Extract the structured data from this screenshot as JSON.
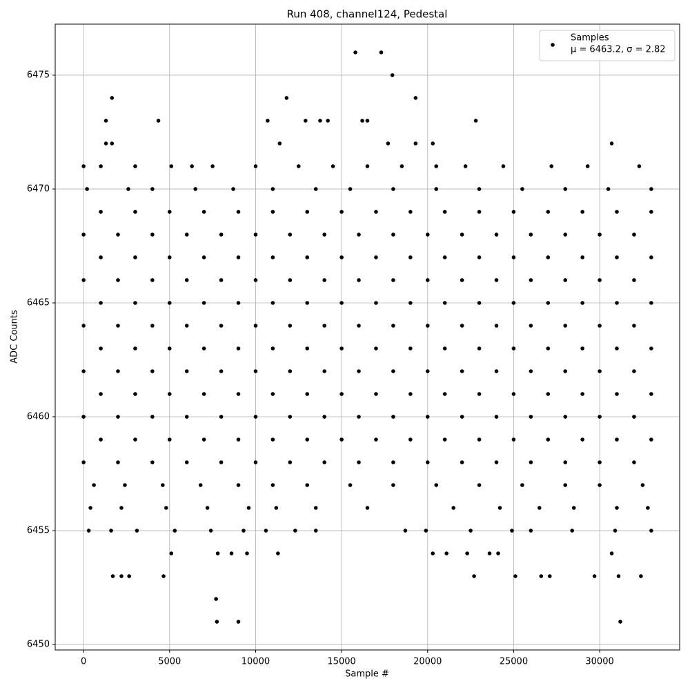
{
  "chart_data": {
    "type": "scatter",
    "title": "Run 408, channel124, Pedestal",
    "x_label": "Sample #",
    "y_label": "ADC Counts",
    "xlim": [
      -1650,
      34650
    ],
    "ylim": [
      6449.76,
      6477.24
    ],
    "xticks": [
      0,
      5000,
      10000,
      15000,
      20000,
      25000,
      30000
    ],
    "yticks": [
      6450,
      6455,
      6460,
      6465,
      6470,
      6475
    ],
    "grid": true,
    "legend_position": "upper right",
    "series": [
      {
        "name": "Samples",
        "label": "μ = 6463.2, σ = 2.82",
        "color": "#000000",
        "x": [
          0,
          2000,
          4000,
          6000,
          8000,
          10000,
          12000,
          14000,
          16000,
          18000,
          20000,
          22000,
          24000,
          26000,
          28000,
          30000,
          32000,
          1000,
          3000,
          5000,
          7000,
          9000,
          11000,
          13000,
          15000,
          17000,
          19000,
          21000,
          23000,
          25000,
          27000,
          29000,
          31000,
          33000,
          0,
          2000,
          4000,
          6000,
          8000,
          10000,
          12000,
          14000,
          16000,
          18000,
          20000,
          22000,
          24000,
          26000,
          28000,
          30000,
          32000,
          1000,
          3000,
          5000,
          7000,
          9000,
          11000,
          13000,
          15000,
          17000,
          19000,
          21000,
          23000,
          25000,
          27000,
          29000,
          31000,
          33000,
          0,
          2000,
          4000,
          6000,
          8000,
          10000,
          12000,
          14000,
          16000,
          18000,
          20000,
          22000,
          24000,
          26000,
          28000,
          30000,
          32000,
          1000,
          3000,
          5000,
          7000,
          9000,
          11000,
          13000,
          15000,
          17000,
          19000,
          21000,
          23000,
          25000,
          27000,
          29000,
          31000,
          33000,
          0,
          2000,
          4000,
          6000,
          8000,
          10000,
          12000,
          14000,
          16000,
          18000,
          20000,
          22000,
          24000,
          26000,
          28000,
          30000,
          32000,
          1000,
          3000,
          5000,
          7000,
          9000,
          11000,
          13000,
          15000,
          17000,
          19000,
          21000,
          23000,
          25000,
          27000,
          29000,
          31000,
          33000,
          0,
          2000,
          4000,
          6000,
          8000,
          10000,
          12000,
          14000,
          16000,
          18000,
          20000,
          22000,
          24000,
          26000,
          28000,
          30000,
          32000,
          1000,
          3000,
          5000,
          7000,
          9000,
          11000,
          13000,
          15000,
          17000,
          19000,
          21000,
          23000,
          25000,
          27000,
          29000,
          31000,
          33000,
          0,
          2000,
          4000,
          6000,
          8000,
          10000,
          12000,
          14000,
          16000,
          18000,
          20000,
          22000,
          24000,
          26000,
          28000,
          30000,
          32000,
          1000,
          3000,
          5000,
          7000,
          9000,
          11000,
          13000,
          15000,
          17000,
          19000,
          21000,
          23000,
          25000,
          27000,
          29000,
          31000,
          33000,
          1000,
          3000,
          5100,
          6300,
          7500,
          10000,
          12500,
          14500,
          16500,
          18500,
          20500,
          22200,
          24400,
          27200,
          29300,
          32300,
          2600,
          4000,
          6500,
          8700,
          11000,
          13500,
          15500,
          18000,
          20500,
          23000,
          25500,
          28000,
          30500,
          33000,
          600,
          2400,
          4600,
          6800,
          9000,
          11000,
          13000,
          15500,
          18000,
          20500,
          23000,
          25500,
          28000,
          30000,
          32500,
          400,
          2200,
          4800,
          7200,
          9600,
          11200,
          13500,
          16500,
          21500,
          24200,
          26500,
          28500,
          31000,
          32800,
          300,
          1600,
          3100,
          5300,
          7400,
          9300,
          10600,
          12300,
          13500,
          18700,
          19900,
          22500,
          24900,
          26000,
          28400,
          30900,
          33000,
          0,
          200,
          1300,
          1300,
          1650,
          1650,
          4350,
          10700,
          11400,
          11800,
          12900,
          13750,
          14200,
          15800,
          16200,
          16500,
          17300,
          17950,
          19300,
          22800,
          30700,
          17700,
          19300,
          20300,
          7700,
          7750,
          9000,
          31200,
          1700,
          2200,
          2650,
          4650,
          22700,
          25100,
          26600,
          27100,
          29700,
          31100,
          32400,
          5100,
          7800,
          8600,
          9500,
          11300,
          20300,
          21100,
          22300,
          23600,
          24100,
          30700
        ],
        "values": [
          6458,
          6458,
          6458,
          6458,
          6458,
          6458,
          6458,
          6458,
          6458,
          6458,
          6458,
          6458,
          6458,
          6458,
          6458,
          6458,
          6458,
          6459,
          6459,
          6459,
          6459,
          6459,
          6459,
          6459,
          6459,
          6459,
          6459,
          6459,
          6459,
          6459,
          6459,
          6459,
          6459,
          6459,
          6460,
          6460,
          6460,
          6460,
          6460,
          6460,
          6460,
          6460,
          6460,
          6460,
          6460,
          6460,
          6460,
          6460,
          6460,
          6460,
          6460,
          6461,
          6461,
          6461,
          6461,
          6461,
          6461,
          6461,
          6461,
          6461,
          6461,
          6461,
          6461,
          6461,
          6461,
          6461,
          6461,
          6461,
          6462,
          6462,
          6462,
          6462,
          6462,
          6462,
          6462,
          6462,
          6462,
          6462,
          6462,
          6462,
          6462,
          6462,
          6462,
          6462,
          6462,
          6463,
          6463,
          6463,
          6463,
          6463,
          6463,
          6463,
          6463,
          6463,
          6463,
          6463,
          6463,
          6463,
          6463,
          6463,
          6463,
          6463,
          6464,
          6464,
          6464,
          6464,
          6464,
          6464,
          6464,
          6464,
          6464,
          6464,
          6464,
          6464,
          6464,
          6464,
          6464,
          6464,
          6464,
          6465,
          6465,
          6465,
          6465,
          6465,
          6465,
          6465,
          6465,
          6465,
          6465,
          6465,
          6465,
          6465,
          6465,
          6465,
          6465,
          6465,
          6466,
          6466,
          6466,
          6466,
          6466,
          6466,
          6466,
          6466,
          6466,
          6466,
          6466,
          6466,
          6466,
          6466,
          6466,
          6466,
          6466,
          6467,
          6467,
          6467,
          6467,
          6467,
          6467,
          6467,
          6467,
          6467,
          6467,
          6467,
          6467,
          6467,
          6467,
          6467,
          6467,
          6467,
          6468,
          6468,
          6468,
          6468,
          6468,
          6468,
          6468,
          6468,
          6468,
          6468,
          6468,
          6468,
          6468,
          6468,
          6468,
          6468,
          6468,
          6469,
          6469,
          6469,
          6469,
          6469,
          6469,
          6469,
          6469,
          6469,
          6469,
          6469,
          6469,
          6469,
          6469,
          6469,
          6469,
          6469,
          6471,
          6471,
          6471,
          6471,
          6471,
          6471,
          6471,
          6471,
          6471,
          6471,
          6471,
          6471,
          6471,
          6471,
          6471,
          6471,
          6470,
          6470,
          6470,
          6470,
          6470,
          6470,
          6470,
          6470,
          6470,
          6470,
          6470,
          6470,
          6470,
          6470,
          6457,
          6457,
          6457,
          6457,
          6457,
          6457,
          6457,
          6457,
          6457,
          6457,
          6457,
          6457,
          6457,
          6457,
          6457,
          6456,
          6456,
          6456,
          6456,
          6456,
          6456,
          6456,
          6456,
          6456,
          6456,
          6456,
          6456,
          6456,
          6456,
          6455,
          6455,
          6455,
          6455,
          6455,
          6455,
          6455,
          6455,
          6455,
          6455,
          6455,
          6455,
          6455,
          6455,
          6455,
          6455,
          6455,
          6471,
          6470,
          6473,
          6472,
          6474,
          6472,
          6473,
          6473,
          6472,
          6474,
          6473,
          6473,
          6473,
          6476,
          6473,
          6473,
          6476,
          6475,
          6474,
          6473,
          6472,
          6472,
          6472,
          6472,
          6452,
          6451,
          6451,
          6451,
          6453,
          6453,
          6453,
          6453,
          6453,
          6453,
          6453,
          6453,
          6453,
          6453,
          6453,
          6454,
          6454,
          6454,
          6454,
          6454,
          6454,
          6454,
          6454,
          6454,
          6454,
          6454
        ]
      }
    ]
  }
}
